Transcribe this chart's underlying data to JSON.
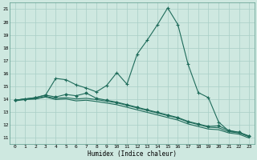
{
  "xlabel": "Humidex (Indice chaleur)",
  "background_color": "#cee8e0",
  "grid_color": "#a8cec6",
  "line_color": "#1e6b5a",
  "xlim": [
    -0.5,
    23.5
  ],
  "ylim": [
    10.5,
    21.5
  ],
  "yticks": [
    11,
    12,
    13,
    14,
    15,
    16,
    17,
    18,
    19,
    20,
    21
  ],
  "xticks": [
    0,
    1,
    2,
    3,
    4,
    5,
    6,
    7,
    8,
    9,
    10,
    11,
    12,
    13,
    14,
    15,
    16,
    17,
    18,
    19,
    20,
    21,
    22,
    23
  ],
  "line1_x": [
    0,
    1,
    2,
    3,
    4,
    5,
    6,
    7,
    8,
    9,
    10,
    11,
    12,
    13,
    14,
    15,
    16,
    17,
    18,
    19,
    20,
    21,
    22,
    23
  ],
  "line1_y": [
    13.9,
    14.0,
    14.1,
    14.3,
    15.6,
    15.5,
    15.1,
    14.85,
    14.55,
    15.05,
    16.05,
    15.15,
    17.5,
    18.6,
    19.8,
    21.1,
    19.8,
    16.7,
    14.5,
    14.1,
    12.2,
    11.5,
    11.4,
    11.1
  ],
  "line2_x": [
    0,
    1,
    2,
    3,
    4,
    5,
    6,
    7,
    8,
    9,
    10,
    11,
    12,
    13,
    14,
    15,
    16,
    17,
    18,
    19,
    20,
    21,
    22,
    23
  ],
  "line2_y": [
    13.9,
    14.0,
    14.1,
    14.3,
    14.15,
    14.35,
    14.25,
    14.45,
    14.05,
    13.9,
    13.75,
    13.55,
    13.35,
    13.15,
    12.95,
    12.75,
    12.55,
    12.25,
    12.05,
    11.85,
    11.9,
    11.55,
    11.4,
    11.1
  ],
  "line3_x": [
    0,
    1,
    2,
    3,
    4,
    5,
    6,
    7,
    8,
    9,
    10,
    11,
    12,
    13,
    14,
    15,
    16,
    17,
    18,
    19,
    20,
    21,
    22,
    23
  ],
  "line3_y": [
    13.9,
    14.0,
    14.0,
    14.2,
    14.05,
    14.1,
    14.0,
    14.05,
    13.95,
    13.82,
    13.7,
    13.5,
    13.3,
    13.1,
    12.9,
    12.7,
    12.5,
    12.2,
    12.0,
    11.8,
    11.75,
    11.45,
    11.35,
    11.05
  ],
  "line4_x": [
    0,
    1,
    2,
    3,
    4,
    5,
    6,
    7,
    8,
    9,
    10,
    11,
    12,
    13,
    14,
    15,
    16,
    17,
    18,
    19,
    20,
    21,
    22,
    23
  ],
  "line4_y": [
    13.85,
    13.95,
    14.0,
    14.15,
    13.95,
    14.0,
    13.85,
    13.9,
    13.8,
    13.68,
    13.55,
    13.35,
    13.15,
    12.95,
    12.75,
    12.55,
    12.35,
    12.05,
    11.85,
    11.65,
    11.6,
    11.35,
    11.25,
    10.95
  ]
}
